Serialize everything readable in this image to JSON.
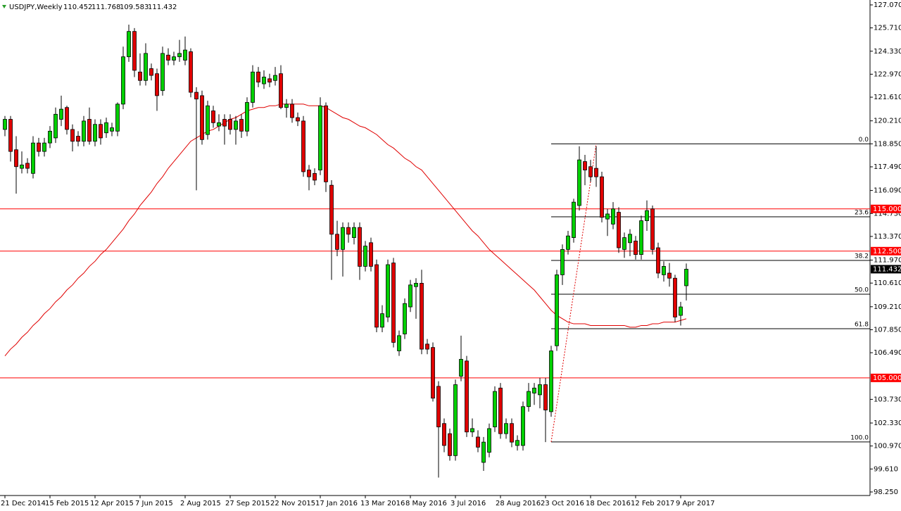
{
  "chart_data": {
    "type": "candlestick",
    "title": "USDJPY,Weekly",
    "categories": [
      "21 Dec 2014",
      null,
      null,
      null,
      null,
      null,
      null,
      null,
      "15 Feb 2015",
      null,
      null,
      null,
      null,
      null,
      null,
      null,
      "12 Apr 2015",
      null,
      null,
      null,
      null,
      null,
      null,
      null,
      "7 Jun 2015",
      null,
      null,
      null,
      null,
      null,
      null,
      null,
      "2 Aug 2015",
      null,
      null,
      null,
      null,
      null,
      null,
      null,
      "27 Sep 2015",
      null,
      null,
      null,
      null,
      null,
      null,
      null,
      "22 Nov 2015",
      null,
      null,
      null,
      null,
      null,
      null,
      null,
      "17 Jan 2016",
      null,
      null,
      null,
      null,
      null,
      null,
      null,
      "13 Mar 2016",
      null,
      null,
      null,
      null,
      null,
      null,
      null,
      "8 May 2016",
      null,
      null,
      null,
      null,
      null,
      null,
      null,
      "3 Jul 2016",
      null,
      null,
      null,
      null,
      null,
      null,
      null,
      "28 Aug 2016",
      null,
      null,
      null,
      null,
      null,
      null,
      null,
      "23 Oct 2016",
      null,
      null,
      null,
      null,
      null,
      null,
      null,
      "18 Dec 2016",
      null,
      null,
      null,
      null,
      null,
      null,
      null,
      "12 Feb 2017",
      null,
      null,
      null,
      null,
      null,
      null,
      null,
      "9 Apr 2017",
      null
    ],
    "open": [
      119.7,
      120.3,
      118.5,
      117.4,
      117.7,
      117.1,
      118.9,
      118.4,
      118.9,
      119.2,
      120.3,
      121.0,
      119.7,
      119.3,
      119.0,
      120.3,
      119.0,
      120.0,
      119.5,
      119.6,
      119.6,
      121.2,
      124.0,
      125.5,
      123.1,
      122.6,
      123.3,
      123.0,
      122.0,
      124.1,
      123.8,
      124.0,
      123.8,
      124.3,
      121.9,
      121.7,
      119.4,
      120.8,
      119.9,
      120.3,
      120.3,
      119.7,
      120.3,
      119.6,
      121.3,
      123.1,
      122.4,
      122.7,
      122.6,
      123.0,
      121.0,
      121.2,
      120.4,
      120.2,
      117.3,
      117.1,
      117.3,
      121.1,
      116.4,
      113.5,
      112.6,
      113.9,
      113.3,
      113.9,
      111.6,
      113.0,
      111.7,
      108.0,
      108.6,
      111.8,
      106.6,
      107.6,
      109.2,
      110.4,
      110.6,
      107.0,
      106.8,
      104.5,
      102.3,
      101.7,
      100.4,
      105.1,
      106.0,
      101.8,
      101.5,
      100.0,
      100.6,
      102.1,
      104.4,
      101.7,
      102.3,
      101.0,
      101.0,
      103.3,
      104.1,
      104.0,
      104.6,
      103.0,
      106.9,
      111.1,
      112.6,
      113.3,
      115.2,
      117.8,
      117.5,
      117.4,
      116.9,
      114.4,
      114.1,
      114.8,
      112.6,
      113.0,
      113.1,
      112.3,
      114.3,
      115.0,
      112.7,
      111.1,
      111.2,
      110.9,
      108.7,
      110.452
    ],
    "high": [
      120.5,
      120.5,
      119.3,
      118.4,
      118.0,
      119.3,
      119.2,
      119.2,
      119.9,
      121.0,
      121.7,
      121.1,
      120.0,
      119.6,
      120.5,
      121.0,
      120.3,
      120.3,
      120.4,
      120.1,
      121.3,
      124.6,
      125.9,
      125.7,
      124.2,
      124.8,
      123.6,
      123.3,
      124.6,
      124.5,
      124.3,
      125.0,
      125.2,
      124.5,
      122.2,
      122.0,
      121.4,
      121.1,
      120.6,
      120.6,
      120.6,
      120.5,
      120.6,
      121.6,
      123.5,
      123.4,
      123.2,
      123.0,
      123.4,
      123.5,
      121.5,
      121.5,
      120.7,
      120.5,
      117.6,
      117.4,
      121.6,
      121.3,
      116.7,
      114.3,
      114.2,
      114.2,
      114.2,
      114.2,
      113.1,
      113.3,
      112.0,
      109.3,
      112.0,
      112.1,
      107.8,
      109.7,
      110.8,
      110.9,
      111.4,
      107.3,
      107.1,
      104.8,
      102.6,
      102.0,
      104.9,
      107.5,
      106.3,
      102.6,
      101.9,
      101.5,
      102.3,
      104.5,
      104.7,
      102.6,
      102.6,
      101.6,
      103.6,
      104.7,
      104.7,
      105.0,
      105.0,
      106.9,
      111.4,
      112.9,
      113.7,
      115.6,
      118.7,
      118.2,
      117.9,
      118.7,
      117.2,
      115.0,
      115.4,
      115.1,
      113.6,
      113.8,
      113.4,
      114.6,
      115.5,
      115.2,
      113.0,
      111.9,
      111.8,
      111.1,
      109.5,
      111.768
    ],
    "low": [
      119.3,
      117.8,
      115.9,
      117.1,
      117.1,
      116.8,
      118.1,
      118.1,
      118.6,
      118.9,
      119.9,
      119.4,
      118.4,
      118.7,
      118.7,
      118.8,
      118.7,
      118.8,
      119.2,
      119.3,
      119.3,
      120.9,
      123.7,
      122.8,
      122.3,
      122.3,
      122.6,
      120.8,
      121.7,
      123.5,
      123.5,
      123.7,
      123.5,
      121.6,
      116.1,
      118.8,
      119.1,
      119.8,
      119.6,
      118.8,
      119.4,
      118.8,
      119.2,
      119.3,
      121.0,
      122.2,
      122.1,
      122.2,
      122.3,
      120.9,
      120.4,
      120.1,
      119.9,
      116.9,
      116.1,
      116.4,
      117.0,
      116.0,
      110.8,
      112.2,
      111.0,
      113.0,
      112.9,
      110.8,
      111.3,
      111.3,
      107.7,
      107.7,
      108.3,
      106.8,
      106.3,
      107.3,
      108.9,
      108.5,
      106.4,
      106.4,
      103.6,
      99.1,
      100.6,
      100.1,
      100.1,
      104.8,
      101.5,
      101.5,
      100.6,
      99.5,
      100.3,
      101.8,
      101.4,
      101.4,
      100.9,
      100.7,
      100.7,
      103.0,
      103.4,
      103.2,
      101.2,
      102.7,
      106.6,
      110.5,
      112.3,
      113.0,
      114.9,
      116.4,
      116.6,
      116.3,
      114.2,
      113.4,
      113.8,
      112.4,
      112.1,
      112.2,
      112.0,
      112.0,
      113.7,
      112.3,
      110.9,
      110.7,
      110.4,
      108.3,
      108.1,
      109.583
    ],
    "close": [
      120.3,
      118.4,
      117.5,
      117.6,
      117.4,
      118.9,
      118.4,
      118.9,
      119.6,
      120.6,
      120.9,
      119.7,
      119.0,
      119.0,
      120.2,
      119.0,
      120.0,
      119.2,
      120.1,
      119.8,
      121.2,
      124.0,
      125.5,
      123.2,
      122.6,
      124.2,
      122.9,
      121.7,
      124.2,
      123.8,
      124.0,
      124.2,
      124.4,
      121.9,
      121.5,
      119.1,
      121.1,
      120.1,
      120.1,
      119.9,
      119.7,
      120.2,
      119.6,
      121.3,
      123.1,
      122.5,
      122.8,
      122.5,
      122.9,
      121.0,
      121.2,
      120.4,
      120.2,
      117.2,
      116.9,
      116.7,
      121.1,
      116.6,
      113.5,
      112.6,
      113.9,
      113.5,
      113.9,
      111.6,
      112.8,
      111.6,
      108.0,
      108.8,
      111.7,
      107.1,
      107.5,
      109.4,
      110.5,
      110.6,
      106.7,
      106.7,
      103.8,
      102.1,
      101.0,
      100.4,
      104.6,
      106.1,
      101.8,
      102.0,
      100.9,
      101.2,
      102.0,
      104.2,
      101.7,
      102.3,
      101.2,
      101.3,
      103.3,
      104.2,
      104.4,
      104.6,
      103.1,
      106.6,
      111.1,
      112.6,
      113.4,
      115.4,
      117.9,
      117.3,
      116.9,
      116.9,
      114.5,
      114.7,
      115.0,
      112.7,
      113.3,
      113.5,
      112.3,
      114.3,
      114.9,
      112.6,
      111.2,
      111.6,
      110.9,
      108.6,
      109.2,
      111.432
    ],
    "up_color": "#00d000",
    "down_color": "#e00000",
    "moving_average": {
      "color": "#e00000",
      "values": [
        106.3,
        106.7,
        107.0,
        107.4,
        107.7,
        108.1,
        108.4,
        108.8,
        109.1,
        109.5,
        109.8,
        110.2,
        110.5,
        110.9,
        111.2,
        111.6,
        111.9,
        112.3,
        112.6,
        113.0,
        113.4,
        113.8,
        114.3,
        114.7,
        115.2,
        115.6,
        116.0,
        116.5,
        116.9,
        117.4,
        117.8,
        118.2,
        118.6,
        119.0,
        119.2,
        119.4,
        119.6,
        119.7,
        119.9,
        120.1,
        120.3,
        120.4,
        120.6,
        120.8,
        120.9,
        121.0,
        121.0,
        121.1,
        121.1,
        121.2,
        121.2,
        121.2,
        121.2,
        121.2,
        121.1,
        121.1,
        121.1,
        121.0,
        120.8,
        120.6,
        120.4,
        120.3,
        120.1,
        119.9,
        119.8,
        119.6,
        119.4,
        119.1,
        118.8,
        118.6,
        118.3,
        118.0,
        117.8,
        117.5,
        117.3,
        116.9,
        116.5,
        116.1,
        115.7,
        115.3,
        114.9,
        114.5,
        114.1,
        113.7,
        113.4,
        113.0,
        112.6,
        112.3,
        112.0,
        111.7,
        111.4,
        111.1,
        110.8,
        110.5,
        110.2,
        109.8,
        109.4,
        109.0,
        108.7,
        108.5,
        108.3,
        108.2,
        108.2,
        108.2,
        108.1,
        108.1,
        108.1,
        108.1,
        108.1,
        108.1,
        108.1,
        108.0,
        108.0,
        108.1,
        108.1,
        108.2,
        108.2,
        108.3,
        108.3,
        108.3,
        108.4,
        108.5
      ]
    },
    "levels": [
      {
        "value": 115,
        "label": "115.000"
      },
      {
        "value": 112.5,
        "label": "112.500"
      },
      {
        "value": 105,
        "label": "105.000"
      }
    ],
    "fib_levels": [
      {
        "label": "0.0",
        "price": 118.85
      },
      {
        "label": "23.6",
        "price": 114.53
      },
      {
        "label": "38.2",
        "price": 111.95
      },
      {
        "label": "50.0",
        "price": 109.95
      },
      {
        "label": "61.8",
        "price": 107.91
      },
      {
        "label": "100.0",
        "price": 101.21
      }
    ],
    "ylim": [
      98.04,
      127.36
    ],
    "yticks": [
      {
        "value": 127.07,
        "label": "127.070"
      },
      {
        "value": 125.71,
        "label": "125.710"
      },
      {
        "value": 124.33,
        "label": "124.330"
      },
      {
        "value": 122.97,
        "label": "122.970"
      },
      {
        "value": 121.61,
        "label": "121.610"
      },
      {
        "value": 120.21,
        "label": "120.210"
      },
      {
        "value": 118.85,
        "label": "118.850"
      },
      {
        "value": 117.49,
        "label": "117.490"
      },
      {
        "value": 116.09,
        "label": "116.090"
      },
      {
        "value": 114.73,
        "label": "114.730"
      },
      {
        "value": 113.37,
        "label": "113.370"
      },
      {
        "value": 111.97,
        "label": "111.970"
      },
      {
        "value": 110.61,
        "label": "110.610"
      },
      {
        "value": 109.21,
        "label": "109.210"
      },
      {
        "value": 107.85,
        "label": "107.850"
      },
      {
        "value": 106.49,
        "label": "106.490"
      },
      {
        "value": 103.73,
        "label": "103.730"
      },
      {
        "value": 102.33,
        "label": "102.330"
      },
      {
        "value": 100.97,
        "label": "100.970"
      },
      {
        "value": 99.61,
        "label": "99.610"
      },
      {
        "value": 98.25,
        "label": "98.250"
      }
    ]
  }
}
